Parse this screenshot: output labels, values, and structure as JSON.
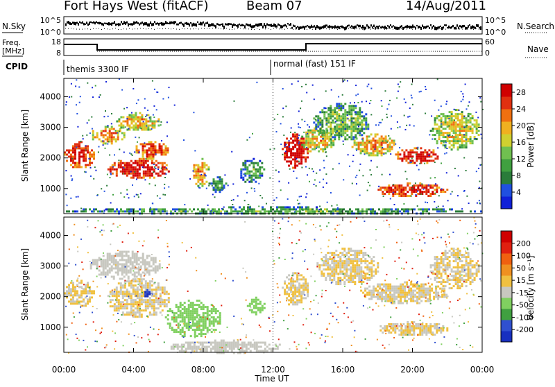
{
  "header": {
    "station": "Fort Hays West (fitACF)",
    "beam": "Beam 07",
    "date": "14/Aug/2011"
  },
  "left_labels": {
    "nsky": "N.Sky",
    "freq_line1": "Freq.",
    "freq_line2": "[MHz]",
    "cpid": "CPID"
  },
  "right_labels": {
    "nsearch": "N.Search",
    "nave": "Nave"
  },
  "noise_panel": {
    "left_ticks": [
      "10^5",
      "10^0"
    ],
    "right_ticks": [
      "10^5",
      "10^0"
    ]
  },
  "freq_panel": {
    "left_ticks": [
      "18",
      "8"
    ],
    "right_ticks": [
      "60",
      "0"
    ]
  },
  "cpid_panel": {
    "modes": [
      {
        "label": "themis 3300 IF",
        "start": 0
      },
      {
        "label": "normal (fast) 151 IF",
        "start": 12
      }
    ]
  },
  "chart_data": [
    {
      "type": "heatmap",
      "name": "power",
      "ylabel": "Slant Range [km]",
      "xlabel": "Time UT",
      "xlim": [
        0,
        24
      ],
      "ylim": [
        180,
        4600
      ],
      "x_ticks": [
        "00:00",
        "04:00",
        "08:00",
        "12:00",
        "16:00",
        "20:00",
        "00:00"
      ],
      "y_ticks": [
        "1000",
        "2000",
        "3000",
        "4000"
      ],
      "colorbar": {
        "label": "Power [dB]",
        "ticks": [
          "4",
          "8",
          "12",
          "16",
          "20",
          "24",
          "28"
        ],
        "range": [
          0,
          30
        ],
        "colors": [
          "#1020d8",
          "#2050e0",
          "#2a7c3a",
          "#40a040",
          "#70c050",
          "#d0d030",
          "#f0b020",
          "#f07010",
          "#e03010",
          "#d00000"
        ]
      },
      "features": [
        {
          "t0": 0.0,
          "t1": 1.7,
          "r0": 1700,
          "r1": 2550,
          "level": 22
        },
        {
          "t0": 1.5,
          "t1": 3.5,
          "r0": 2500,
          "r1": 3050,
          "level": 16
        },
        {
          "t0": 3.0,
          "t1": 5.5,
          "r0": 2900,
          "r1": 3500,
          "level": 14
        },
        {
          "t0": 2.5,
          "t1": 6.0,
          "r0": 1350,
          "r1": 2000,
          "level": 24
        },
        {
          "t0": 4.0,
          "t1": 6.0,
          "r0": 2000,
          "r1": 2550,
          "level": 20
        },
        {
          "t0": 7.3,
          "t1": 8.3,
          "r0": 1100,
          "r1": 2000,
          "level": 16
        },
        {
          "t0": 8.3,
          "t1": 9.3,
          "r0": 900,
          "r1": 1400,
          "level": 6
        },
        {
          "t0": 10.0,
          "t1": 11.5,
          "r0": 1200,
          "r1": 2000,
          "level": 5
        },
        {
          "t0": 12.5,
          "t1": 14.0,
          "r0": 1700,
          "r1": 2800,
          "level": 26
        },
        {
          "t0": 13.5,
          "t1": 15.5,
          "r0": 2200,
          "r1": 3000,
          "level": 14
        },
        {
          "t0": 14.3,
          "t1": 17.5,
          "r0": 2600,
          "r1": 3800,
          "level": 8
        },
        {
          "t0": 16.5,
          "t1": 19.0,
          "r0": 2100,
          "r1": 2800,
          "level": 16
        },
        {
          "t0": 19.0,
          "t1": 21.5,
          "r0": 1850,
          "r1": 2350,
          "level": 24
        },
        {
          "t0": 21.0,
          "t1": 23.8,
          "r0": 2300,
          "r1": 3600,
          "level": 12
        },
        {
          "t0": 18.0,
          "t1": 22.0,
          "r0": 750,
          "r1": 1200,
          "level": 22
        },
        {
          "t0": 0.0,
          "t1": 24.0,
          "r0": 180,
          "r1": 420,
          "level": 6
        }
      ]
    },
    {
      "type": "heatmap",
      "name": "velocity",
      "ylabel": "Slant Range [km]",
      "xlabel": "Time UT",
      "xlim": [
        0,
        24
      ],
      "ylim": [
        180,
        4600
      ],
      "x_ticks": [
        "00:00",
        "04:00",
        "08:00",
        "12:00",
        "16:00",
        "20:00",
        "00:00"
      ],
      "y_ticks": [
        "1000",
        "2000",
        "3000",
        "4000"
      ],
      "colorbar": {
        "label": "Velocity [m s⁻¹]",
        "ticks": [
          "200",
          "100",
          "50",
          "15",
          "-15",
          "-50",
          "-100",
          "-200"
        ],
        "range": [
          -250,
          250
        ],
        "colors": [
          "#1830c0",
          "#3050d0",
          "#40a040",
          "#80d060",
          "#c8c8c0",
          "#f0c040",
          "#f09020",
          "#f06010",
          "#e02010",
          "#d00000"
        ]
      },
      "features": [
        {
          "t0": 0.0,
          "t1": 1.7,
          "r0": 1700,
          "r1": 2550,
          "level": 0
        },
        {
          "t0": 2.5,
          "t1": 6.0,
          "r0": 1350,
          "r1": 2600,
          "level": 0
        },
        {
          "t0": 1.5,
          "t1": 5.5,
          "r0": 2600,
          "r1": 3500,
          "level": -20
        },
        {
          "t0": 4.5,
          "t1": 5.0,
          "r0": 2000,
          "r1": 2250,
          "level": -200
        },
        {
          "t0": 5.8,
          "t1": 9.0,
          "r0": 700,
          "r1": 1900,
          "level": -60
        },
        {
          "t0": 10.5,
          "t1": 11.5,
          "r0": 1400,
          "r1": 2000,
          "level": -60
        },
        {
          "t0": 12.5,
          "t1": 14.0,
          "r0": 1700,
          "r1": 2800,
          "level": 0
        },
        {
          "t0": 14.5,
          "t1": 18.0,
          "r0": 2400,
          "r1": 3600,
          "level": 0
        },
        {
          "t0": 17.0,
          "t1": 22.0,
          "r0": 1800,
          "r1": 2500,
          "level": 0
        },
        {
          "t0": 21.0,
          "t1": 23.8,
          "r0": 2300,
          "r1": 3600,
          "level": 0
        },
        {
          "t0": 18.0,
          "t1": 22.0,
          "r0": 750,
          "r1": 1200,
          "level": 0
        },
        {
          "t0": 6.0,
          "t1": 12.5,
          "r0": 180,
          "r1": 600,
          "level": -40
        }
      ]
    }
  ]
}
